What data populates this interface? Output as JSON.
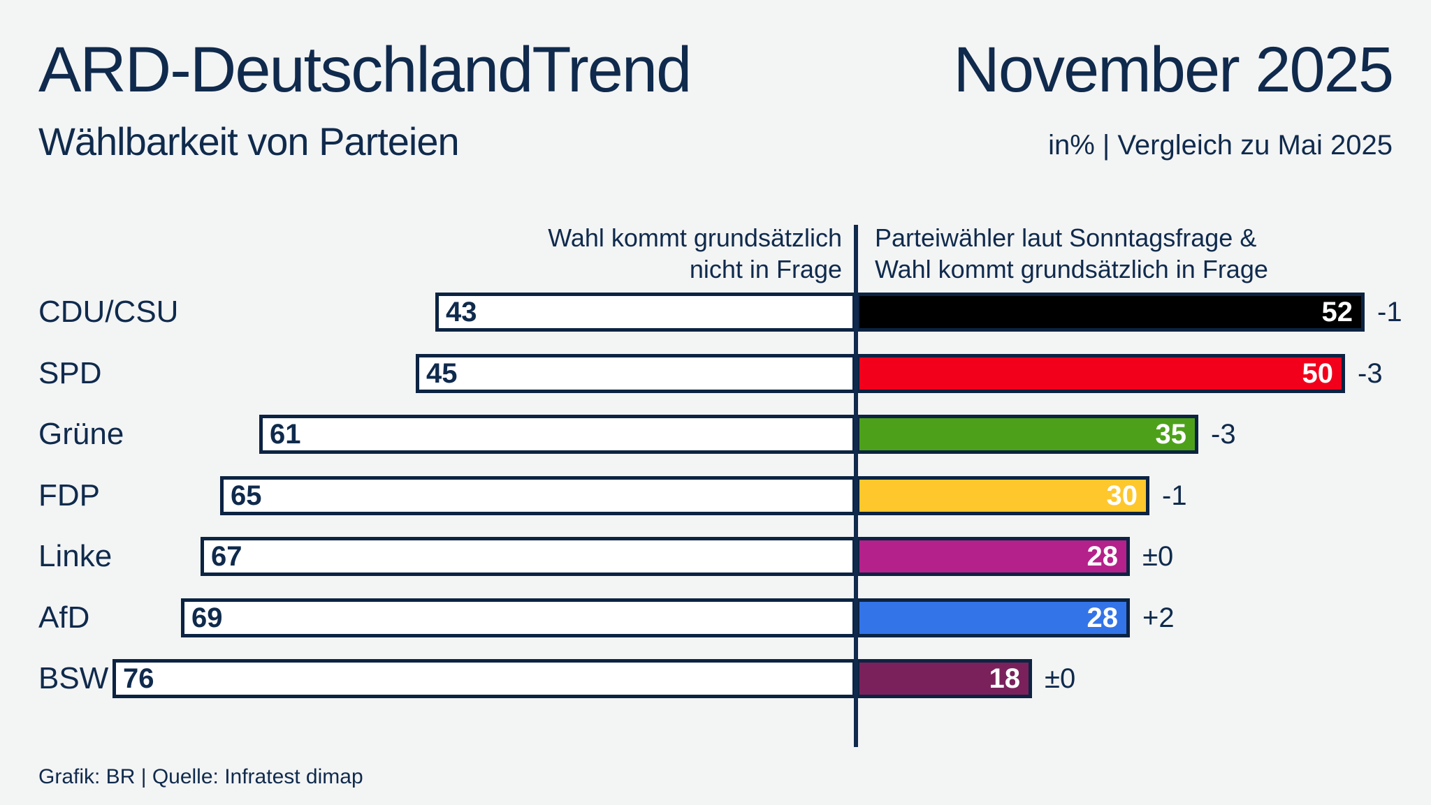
{
  "header": {
    "title": "ARD-DeutschlandTrend",
    "subtitle": "Wählbarkeit von Parteien",
    "period": "November 2025",
    "unit_note": "in% | Vergleich zu Mai 2025"
  },
  "columns": {
    "left_line1": "Wahl kommt grundsätzlich",
    "left_line2": "nicht in Frage",
    "right_line1": "Parteiwähler laut Sonntagsfrage &",
    "right_line2": "Wahl kommt grundsätzlich in Frage"
  },
  "footer": {
    "credit": "Grafik: BR | Quelle: Infratest dimap"
  },
  "colors": {
    "background": "#f3f4f4",
    "navy_text": "#0f2a4c",
    "bar_border": "#0c2342",
    "left_bar_fill": "#ffffff"
  },
  "chart_data": {
    "type": "bar",
    "orientation": "diverging-horizontal",
    "title": "Wählbarkeit von Parteien",
    "unit": "%",
    "comparison": "Vergleich zu Mai 2025",
    "categories": [
      "CDU/CSU",
      "SPD",
      "Grüne",
      "FDP",
      "Linke",
      "AfD",
      "BSW"
    ],
    "series": [
      {
        "name": "Wahl kommt grundsätzlich nicht in Frage",
        "side": "left",
        "values": [
          43,
          45,
          61,
          65,
          67,
          69,
          76
        ]
      },
      {
        "name": "Parteiwähler laut Sonntagsfrage & Wahl kommt grundsätzlich in Frage",
        "side": "right",
        "values": [
          52,
          50,
          35,
          30,
          28,
          28,
          18
        ]
      }
    ],
    "change_vs_previous": [
      "-1",
      "-3",
      "-3",
      "-1",
      "±0",
      "+2",
      "±0"
    ],
    "right_bar_colors": [
      "#000000",
      "#f2001b",
      "#4da11a",
      "#fec72b",
      "#b4218a",
      "#3374e8",
      "#7a215c"
    ],
    "axis": {
      "center_value": 0,
      "grid": false,
      "legend_position": "top-columns"
    }
  }
}
